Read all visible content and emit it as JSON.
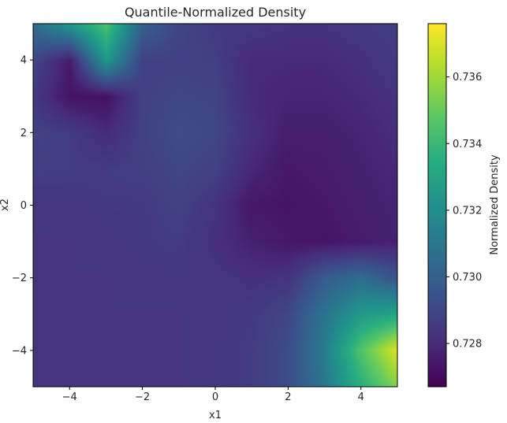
{
  "chart_data": {
    "type": "heatmap",
    "title": "Quantile-Normalized Density",
    "xlabel": "x1",
    "ylabel": "x2",
    "xlim": [
      -5,
      5
    ],
    "ylim": [
      -5,
      5
    ],
    "x_ticks": [
      -4,
      -2,
      0,
      2,
      4
    ],
    "y_ticks": [
      -4,
      -2,
      0,
      2,
      4
    ],
    "x_tick_labels": [
      "−4",
      "−2",
      "0",
      "2",
      "4"
    ],
    "y_tick_labels": [
      "−4",
      "−2",
      "0",
      "2",
      "4"
    ],
    "colormap": "viridis",
    "grid": false,
    "colorbar": {
      "label": "Normalized Density",
      "range": [
        0.7267,
        0.7376
      ],
      "ticks": [
        0.728,
        0.73,
        0.732,
        0.734,
        0.736
      ],
      "tick_labels": [
        "0.728",
        "0.730",
        "0.732",
        "0.734",
        "0.736"
      ]
    },
    "approx_grid": {
      "x": [
        -5,
        -4,
        -3,
        -2,
        -1,
        0,
        1,
        2,
        3,
        4,
        5
      ],
      "y": [
        5,
        4,
        3,
        2,
        1,
        0,
        -1,
        -2,
        -3,
        -4,
        -5
      ],
      "z": [
        [
          0.7305,
          0.7325,
          0.7345,
          0.73,
          0.729,
          0.7285,
          0.7285,
          0.7283,
          0.7283,
          0.7285,
          0.7287
        ],
        [
          0.729,
          0.7275,
          0.7325,
          0.7288,
          0.7288,
          0.7287,
          0.728,
          0.728,
          0.728,
          0.7282,
          0.7285
        ],
        [
          0.7285,
          0.7273,
          0.7272,
          0.7288,
          0.729,
          0.7289,
          0.728,
          0.7278,
          0.7278,
          0.728,
          0.7283
        ],
        [
          0.7288,
          0.7286,
          0.728,
          0.7288,
          0.7292,
          0.729,
          0.7282,
          0.7276,
          0.7276,
          0.7278,
          0.7281
        ],
        [
          0.7287,
          0.7286,
          0.7286,
          0.7287,
          0.729,
          0.7288,
          0.7279,
          0.7274,
          0.7275,
          0.7277,
          0.7279
        ],
        [
          0.7283,
          0.7284,
          0.7285,
          0.7285,
          0.7288,
          0.7283,
          0.7274,
          0.7273,
          0.7274,
          0.7276,
          0.7278
        ],
        [
          0.7283,
          0.7283,
          0.7284,
          0.7285,
          0.7286,
          0.7282,
          0.7277,
          0.7274,
          0.7273,
          0.7275,
          0.7277
        ],
        [
          0.7283,
          0.7283,
          0.7283,
          0.7284,
          0.7284,
          0.7284,
          0.7282,
          0.7283,
          0.7298,
          0.7305,
          0.7295
        ],
        [
          0.7283,
          0.7283,
          0.7283,
          0.7283,
          0.7283,
          0.7284,
          0.7285,
          0.729,
          0.7308,
          0.7325,
          0.733
        ],
        [
          0.7283,
          0.7283,
          0.7283,
          0.7283,
          0.7283,
          0.7284,
          0.7286,
          0.7292,
          0.7312,
          0.7345,
          0.737
        ],
        [
          0.7283,
          0.7283,
          0.7283,
          0.7283,
          0.7283,
          0.7284,
          0.7286,
          0.7292,
          0.731,
          0.7335,
          0.7355
        ]
      ]
    }
  }
}
